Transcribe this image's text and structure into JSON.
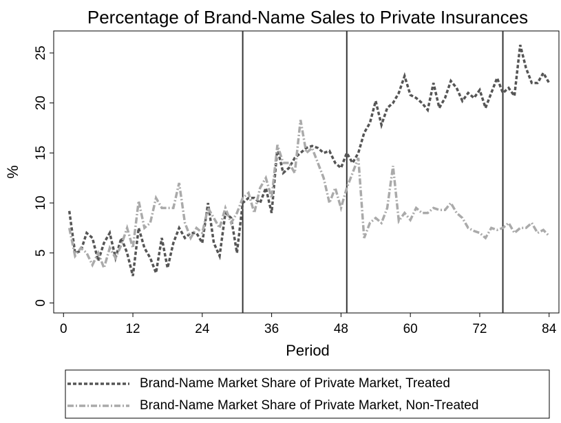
{
  "chart_data": {
    "type": "line",
    "title": "Percentage of Brand-Name Sales to Private Insurances",
    "x_label": "Period",
    "y_label": "%",
    "x": [
      1,
      2,
      3,
      4,
      5,
      6,
      7,
      8,
      9,
      10,
      11,
      12,
      13,
      14,
      15,
      16,
      17,
      18,
      19,
      20,
      21,
      22,
      23,
      24,
      25,
      26,
      27,
      28,
      29,
      30,
      31,
      32,
      33,
      34,
      35,
      36,
      37,
      38,
      39,
      40,
      41,
      42,
      43,
      44,
      45,
      46,
      47,
      48,
      49,
      50,
      51,
      52,
      53,
      54,
      55,
      56,
      57,
      58,
      59,
      60,
      61,
      62,
      63,
      64,
      65,
      66,
      67,
      68,
      69,
      70,
      71,
      72,
      73,
      74,
      75,
      76,
      77,
      78,
      79,
      80,
      81,
      82,
      83,
      84
    ],
    "series": [
      {
        "name": "Brand-Name Market Share of Private Market, Treated",
        "color": "#555555",
        "dash": "5,3",
        "values": [
          9.2,
          5.0,
          5.2,
          7.0,
          6.5,
          4.2,
          6.0,
          7.0,
          4.5,
          6.5,
          5.0,
          2.7,
          7.5,
          5.5,
          4.5,
          3.0,
          6.5,
          3.5,
          6.0,
          7.5,
          6.5,
          7.0,
          7.0,
          6.0,
          10.0,
          6.0,
          4.7,
          9.0,
          8.5,
          5.0,
          10.0,
          10.5,
          10.5,
          10.0,
          11.5,
          9.0,
          15.5,
          13.0,
          13.5,
          14.5,
          15.0,
          15.5,
          15.7,
          15.5,
          15.0,
          15.2,
          14.0,
          13.5,
          15.0,
          14.0,
          15.0,
          17.0,
          18.0,
          20.2,
          17.8,
          19.5,
          20.0,
          21.0,
          22.7,
          20.8,
          20.5,
          20.0,
          19.3,
          22.0,
          19.5,
          20.5,
          22.2,
          21.5,
          20.2,
          21.0,
          20.5,
          21.3,
          19.5,
          21.0,
          22.5,
          21.0,
          21.5,
          20.7,
          25.8,
          23.5,
          22.0,
          22.0,
          23.0,
          22.0
        ]
      },
      {
        "name": "Brand-Name Market Share of Private Market, Non-Treated",
        "color": "#aaaaaa",
        "dash": "9,3,2,3",
        "values": [
          7.5,
          4.7,
          5.5,
          5.0,
          3.8,
          5.0,
          3.5,
          5.5,
          4.5,
          5.8,
          7.5,
          5.5,
          10.2,
          7.5,
          8.0,
          10.5,
          9.5,
          9.5,
          9.5,
          12.0,
          8.0,
          6.5,
          7.5,
          7.0,
          9.5,
          8.5,
          7.5,
          9.5,
          8.0,
          9.0,
          10.5,
          11.0,
          9.0,
          11.5,
          12.5,
          10.5,
          15.8,
          14.0,
          14.0,
          13.0,
          18.3,
          15.0,
          15.5,
          14.0,
          12.5,
          10.0,
          11.5,
          9.5,
          11.5,
          13.0,
          14.5,
          6.5,
          8.0,
          8.5,
          8.0,
          9.5,
          13.7,
          8.2,
          9.0,
          8.3,
          9.5,
          9.0,
          9.0,
          9.5,
          9.3,
          9.3,
          10.0,
          9.0,
          8.5,
          7.5,
          7.2,
          7.0,
          6.5,
          7.5,
          7.3,
          7.5,
          8.0,
          7.0,
          7.5,
          7.5,
          8.0,
          7.0,
          7.3,
          6.7
        ]
      }
    ],
    "xlines": [
      31,
      49,
      76
    ],
    "xlim": [
      -1.7,
      85.7
    ],
    "ylim": [
      -1.0,
      27.2
    ],
    "xticks": [
      0,
      12,
      24,
      36,
      48,
      60,
      72,
      84
    ],
    "yticks": [
      0,
      5,
      10,
      15,
      20,
      25
    ],
    "grid": false,
    "legend": "bottom"
  }
}
